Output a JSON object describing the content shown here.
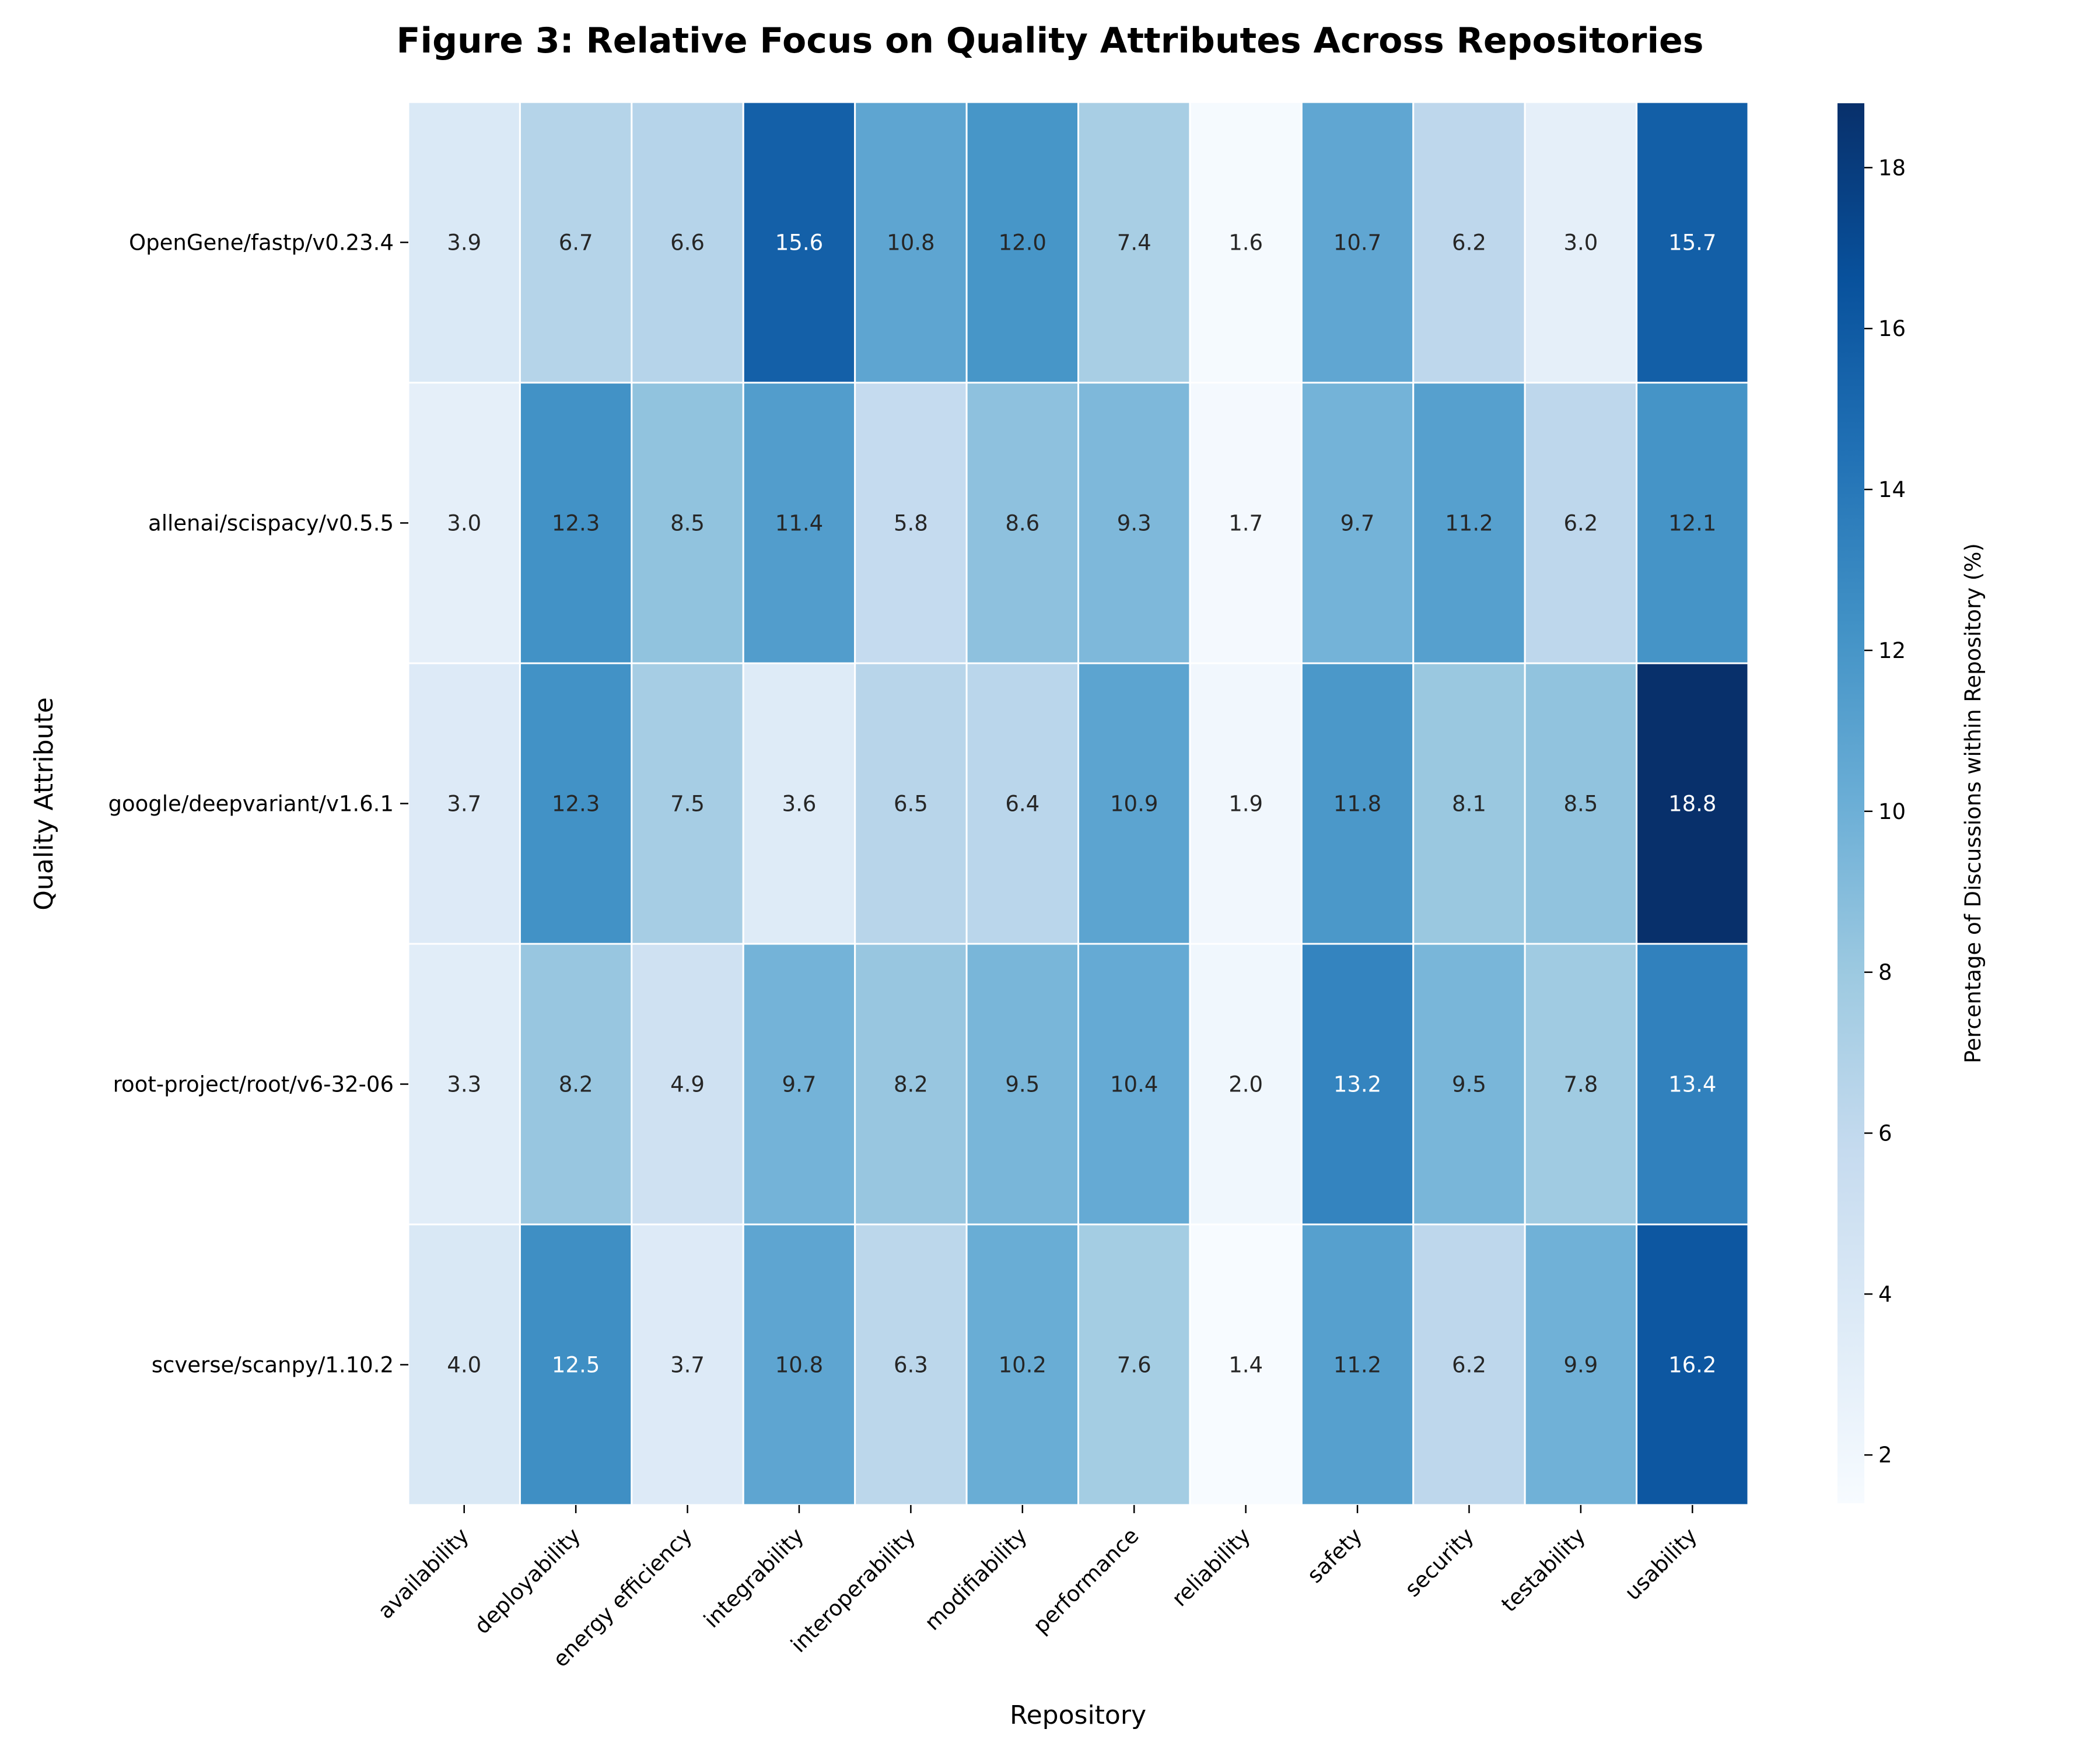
{
  "chart_data": {
    "type": "heatmap",
    "title": "Figure 3: Relative Focus on Quality Attributes Across Repositories",
    "xlabel": "Repository",
    "ylabel": "Quality Attribute",
    "colorbar_label": "Percentage of Discussions within Repository (%)",
    "colormap": "Blues",
    "value_range": [
      1.4,
      18.8
    ],
    "colorbar_ticks": [
      2,
      4,
      6,
      8,
      10,
      12,
      14,
      16,
      18
    ],
    "x_categories": [
      "availability",
      "deployability",
      "energy efficiency",
      "integrability",
      "interoperability",
      "modifiability",
      "performance",
      "reliability",
      "safety",
      "security",
      "testability",
      "usability"
    ],
    "y_categories": [
      "OpenGene/fastp/v0.23.4",
      "allenai/scispacy/v0.5.5",
      "google/deepvariant/v1.6.1",
      "root-project/root/v6-32-06",
      "scverse/scanpy/1.10.2"
    ],
    "values": [
      [
        3.9,
        6.7,
        6.6,
        15.6,
        10.8,
        12.0,
        7.4,
        1.6,
        10.7,
        6.2,
        3.0,
        15.7
      ],
      [
        3.0,
        12.3,
        8.5,
        11.4,
        5.8,
        8.6,
        9.3,
        1.7,
        9.7,
        11.2,
        6.2,
        12.1
      ],
      [
        3.7,
        12.3,
        7.5,
        3.6,
        6.5,
        6.4,
        10.9,
        1.9,
        11.8,
        8.1,
        8.5,
        18.8
      ],
      [
        3.3,
        8.2,
        4.9,
        9.7,
        8.2,
        9.5,
        10.4,
        2.0,
        13.2,
        9.5,
        7.8,
        13.4
      ],
      [
        4.0,
        12.5,
        3.7,
        10.8,
        6.3,
        10.2,
        7.6,
        1.4,
        11.2,
        6.2,
        9.9,
        16.2
      ]
    ],
    "annotation_format": "0.1f",
    "grid": false,
    "legend": "colorbar-right"
  }
}
